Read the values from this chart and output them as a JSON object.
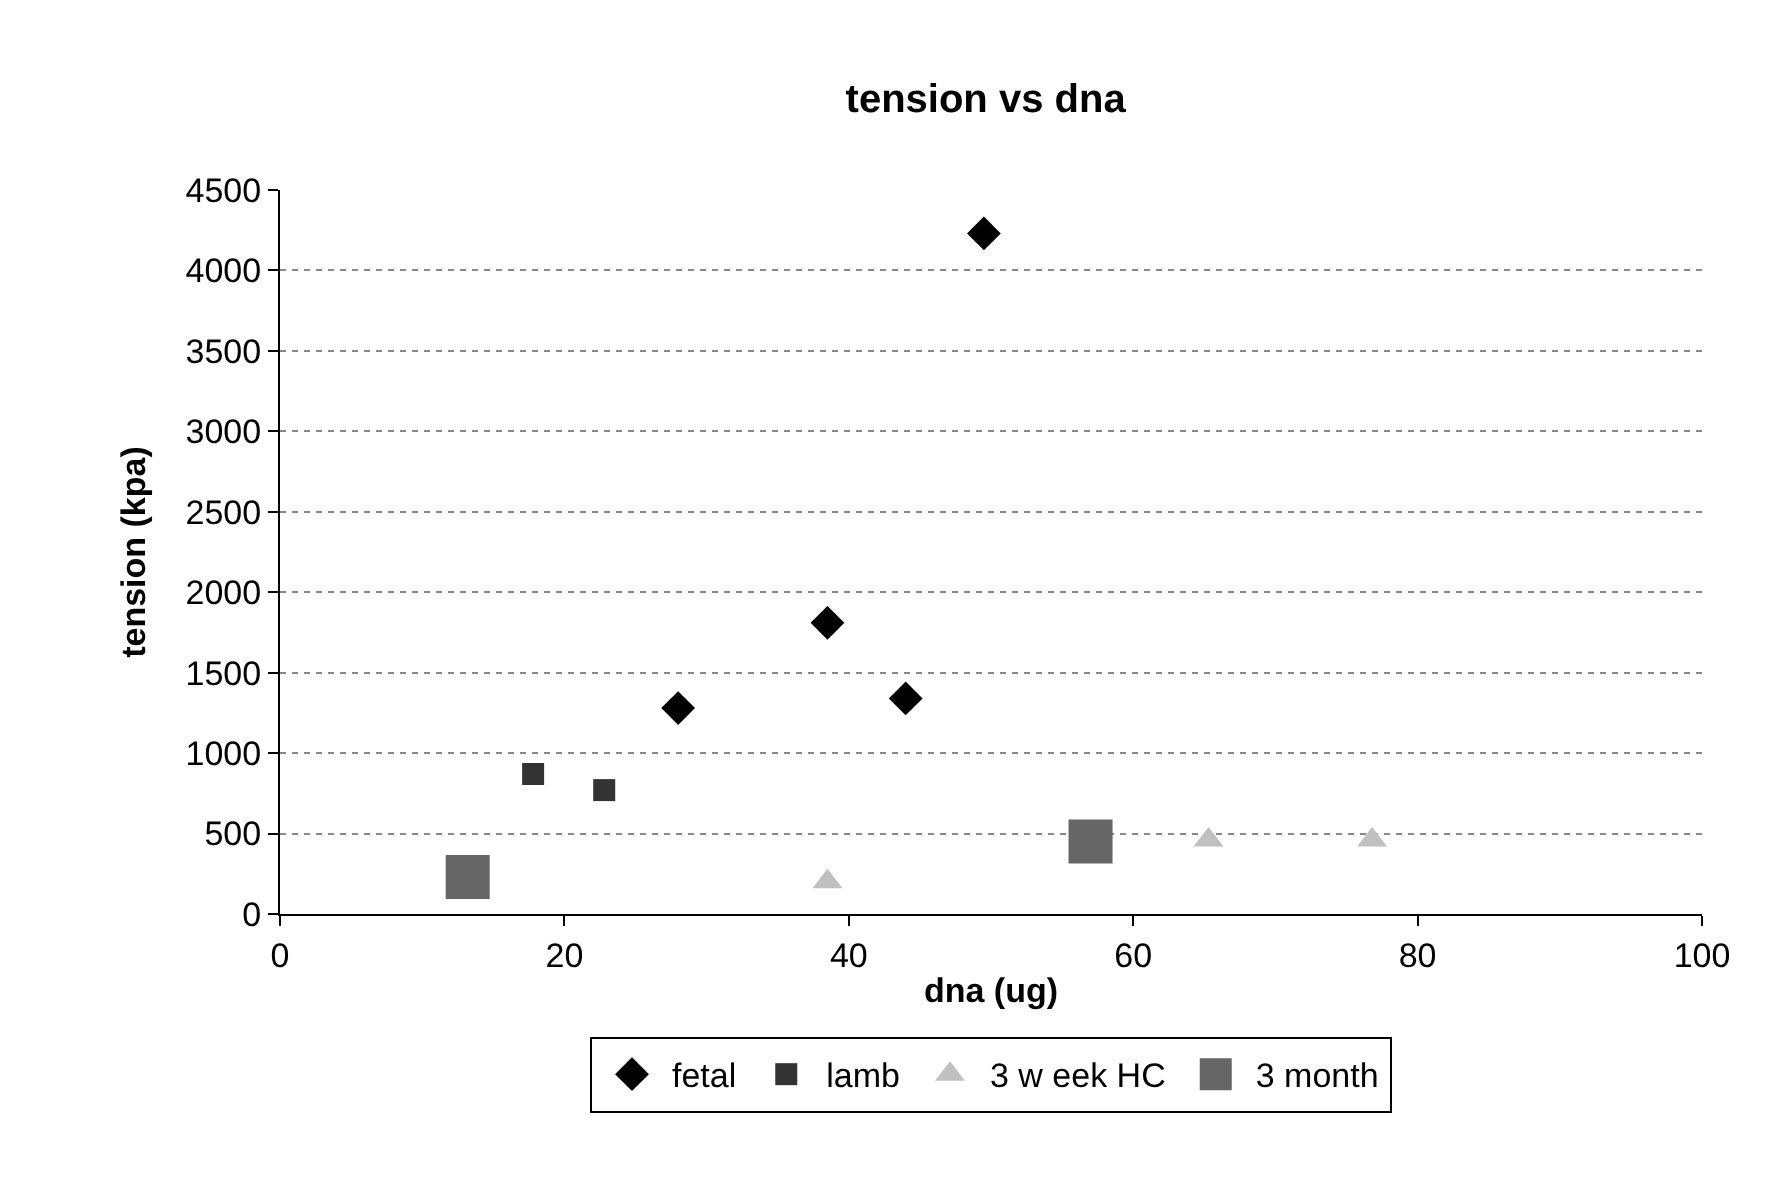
{
  "chart_data": {
    "type": "scatter",
    "title": "tension vs dna",
    "xlabel": "dna (ug)",
    "ylabel": "tension (kpa)",
    "xlim": [
      0,
      100
    ],
    "xticks": [
      0,
      20,
      40,
      60,
      80,
      100
    ],
    "ylim": [
      0,
      4500
    ],
    "yticks": [
      0,
      500,
      1000,
      1500,
      2000,
      2500,
      3000,
      3500,
      4000,
      4500
    ],
    "grid": "y",
    "legend": "bottom",
    "series": [
      {
        "name": "fetal",
        "color": "#000000",
        "marker": "diamond",
        "x": [
          28,
          38.5,
          44,
          49.5
        ],
        "values": [
          1280,
          1810,
          1340,
          4230
        ]
      },
      {
        "name": "lamb",
        "color": "#333333",
        "marker": "square",
        "x": [
          17.8,
          22.8
        ],
        "values": [
          870,
          770
        ]
      },
      {
        "name": "3 w eek HC",
        "color": "#c0c0c0",
        "marker": "triangle",
        "x": [
          38.5,
          65.3,
          76.8
        ],
        "values": [
          200,
          460,
          460
        ]
      },
      {
        "name": "3 month",
        "color": "#666666",
        "marker": "square",
        "x": [
          13.2,
          57
        ],
        "values": [
          230,
          450
        ]
      }
    ]
  }
}
